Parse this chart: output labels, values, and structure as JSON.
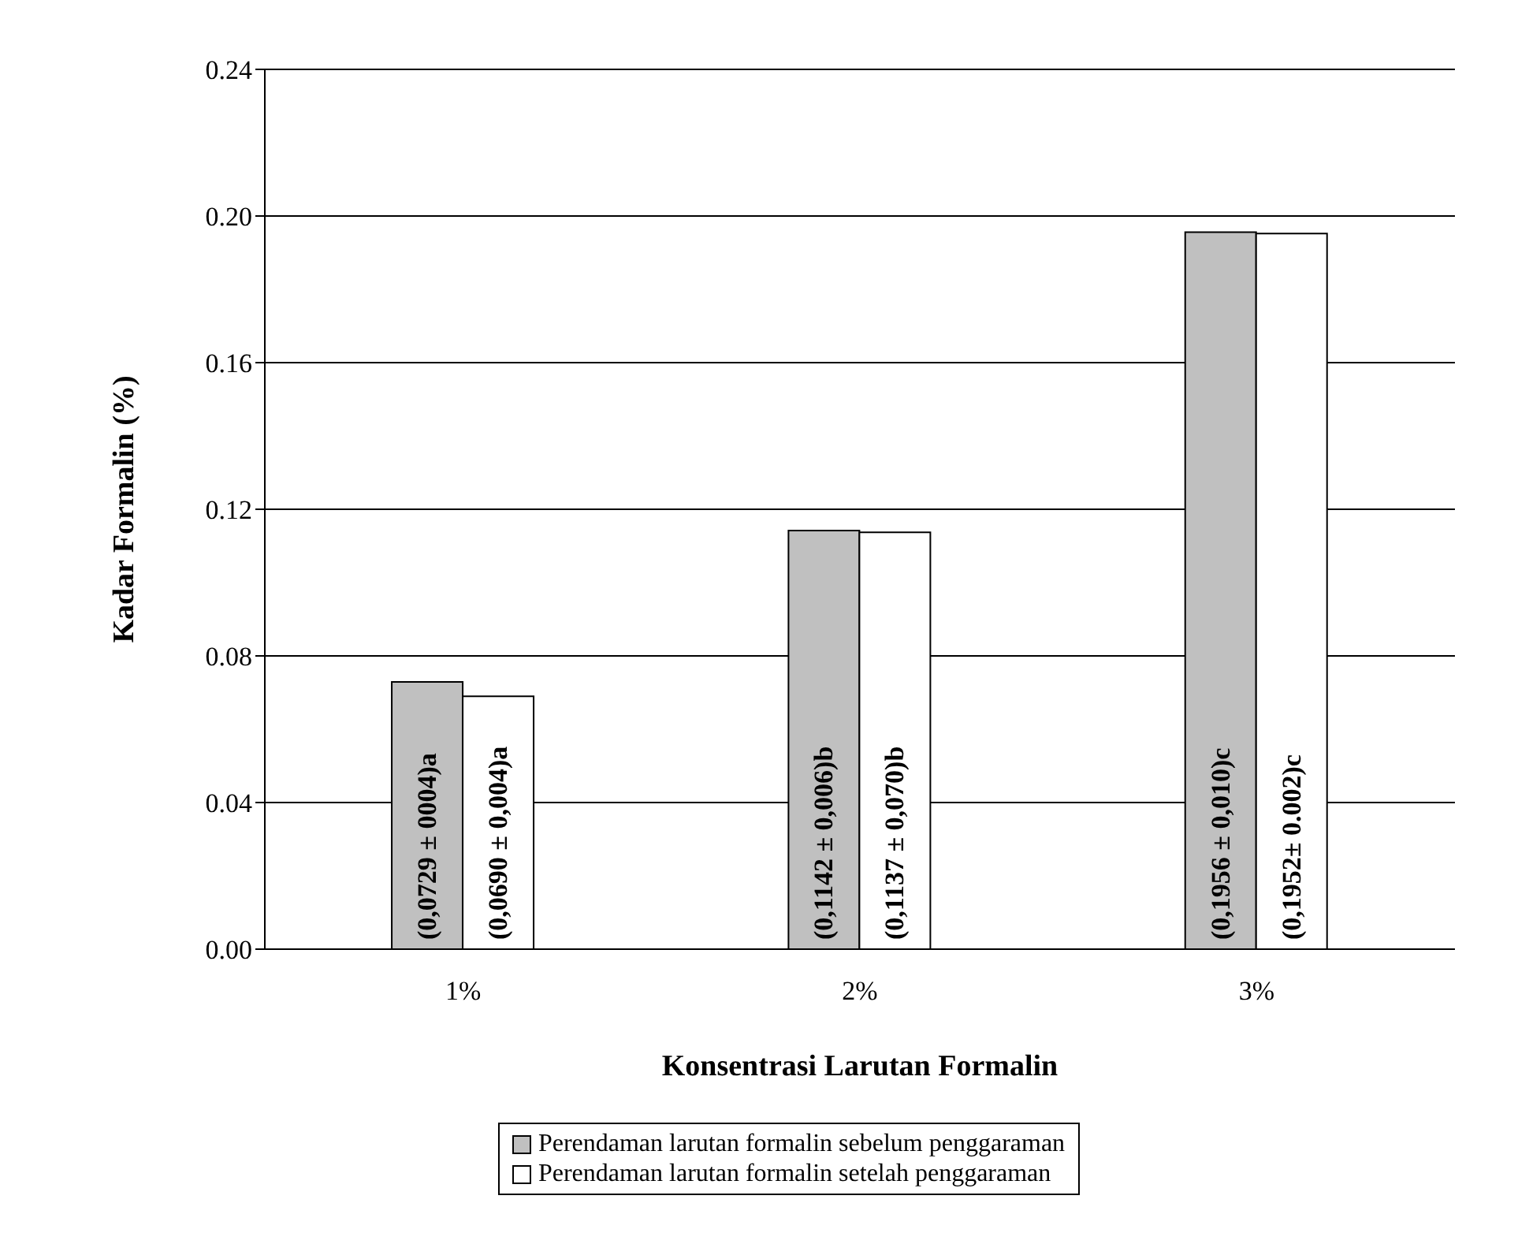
{
  "chart_data": {
    "type": "bar",
    "xlabel": "Konsentrasi Larutan Formalin",
    "ylabel": "Kadar Formalin (%)",
    "categories": [
      "1%",
      "2%",
      "3%"
    ],
    "series": [
      {
        "name": "Perendaman larutan formalin sebelum penggaraman",
        "color": "#c0c0c0",
        "values": [
          0.0729,
          0.1142,
          0.1956
        ],
        "value_labels": [
          "(0,0729 ± 0004)a",
          "(0,1142 ± 0,006)b",
          "(0,1956 ± 0,010)c"
        ]
      },
      {
        "name": "Perendaman larutan formalin setelah penggaraman",
        "color": "#ffffff",
        "values": [
          0.069,
          0.1137,
          0.1952
        ],
        "value_labels": [
          "(0,0690 ± 0,004)a",
          "(0,1137 ± 0,070)b",
          "(0,1952± 0.002)c"
        ]
      }
    ],
    "ylim": [
      0,
      0.24
    ],
    "yticks": [
      "0.00",
      "0.04",
      "0.08",
      "0.12",
      "0.16",
      "0.20",
      "0.24"
    ],
    "grid": "y",
    "legend": "bottom"
  }
}
